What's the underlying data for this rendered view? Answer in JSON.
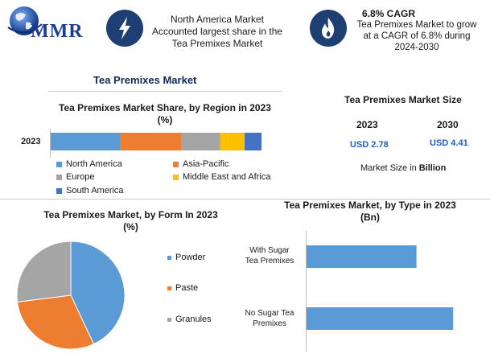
{
  "logo": {
    "text": "MMR"
  },
  "header": {
    "box1": {
      "line1": "North America Market",
      "line2": "Accounted largest share in the",
      "line3": "Tea Premixes Market",
      "icon": "lightning-icon"
    },
    "box2": {
      "title": "6.8% CAGR",
      "line1": "Tea Premixes Market to grow",
      "line2": "at a CAGR of 6.8% during",
      "line3": "2024-2030",
      "icon": "flame-icon"
    }
  },
  "main_title": "Tea Premixes Market",
  "market_size": {
    "title": "Tea Premixes Market Size",
    "years": [
      "2023",
      "2030"
    ],
    "values": [
      "USD 2.78",
      "USD 4.41"
    ],
    "footer_prefix": "Market Size in ",
    "footer_bold": "Billion"
  },
  "colors": {
    "north_america": "#5b9bd5",
    "asia_pacific": "#ed7d31",
    "europe": "#a5a5a5",
    "mea": "#ffc000",
    "south_america": "#4472c4",
    "type_bar": "#5b9bd5"
  },
  "chart_data": [
    {
      "type": "bar",
      "orientation": "horizontal-stacked",
      "title": "Tea Premixes Market Share, by Region in 2023",
      "subtitle": "(%)",
      "categories": [
        "2023"
      ],
      "series": [
        {
          "name": "North America",
          "values": [
            33
          ]
        },
        {
          "name": "Asia-Pacific",
          "values": [
            29
          ]
        },
        {
          "name": "Europe",
          "values": [
            18.5
          ]
        },
        {
          "name": "Middle East and Africa",
          "values": [
            11.5
          ]
        },
        {
          "name": "South America",
          "values": [
            8
          ]
        }
      ],
      "legend": "bottom"
    },
    {
      "type": "pie",
      "title": "Tea Premixes Market, by Form In 2023",
      "subtitle": "(%)",
      "labels": [
        "Powder",
        "Paste",
        "Granules"
      ],
      "values": [
        43,
        30,
        27
      ],
      "legend": "right"
    },
    {
      "type": "bar",
      "orientation": "horizontal",
      "title": "Tea Premixes Market, by Type in 2023",
      "subtitle": "(Bn)",
      "categories": [
        "With Sugar Tea Premixes",
        "No Sugar Tea Premixes"
      ],
      "category_lines": [
        [
          "With Sugar",
          "Tea Premixes"
        ],
        [
          "No Sugar Tea",
          "Premixes"
        ]
      ],
      "values": [
        1.2,
        1.6
      ],
      "xlim": [
        0,
        1.8
      ]
    }
  ]
}
